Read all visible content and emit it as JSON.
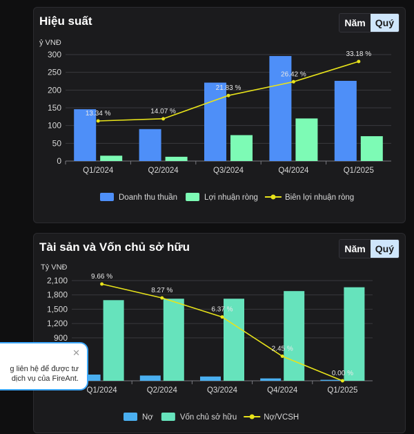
{
  "performance": {
    "title": "Hiệu suất",
    "toggle": {
      "year_label": "Năm",
      "quarter_label": "Quý"
    }
  },
  "assets": {
    "title": "Tài sản và Vốn chủ sở hữu",
    "toggle": {
      "year_label": "Năm",
      "quarter_label": "Quý"
    }
  },
  "popup": {
    "line1": "g liên hệ để được tư",
    "line2": "dịch vụ của FireAnt."
  },
  "chart_data": [
    {
      "type": "bar",
      "ylabel": "ỷ VNĐ",
      "categories": [
        "Q1/2024",
        "Q2/2024",
        "Q3/2024",
        "Q4/2024",
        "Q1/2025"
      ],
      "ylim": [
        0,
        300
      ],
      "yticks": [
        "0",
        "50",
        "100",
        "150",
        "200",
        "250",
        "300"
      ],
      "series": [
        {
          "name": "Doanh thu thuần",
          "type": "bar",
          "color": "#4e8ff8",
          "values": [
            146,
            90,
            221,
            296,
            226
          ]
        },
        {
          "name": "Lợi nhuận ròng",
          "type": "bar",
          "color": "#7dfbb5",
          "values": [
            15,
            12,
            73,
            120,
            70
          ]
        },
        {
          "name": "Biên lợi nhuận ròng",
          "type": "line",
          "color": "#e8e31a",
          "values": [
            13.34,
            14.07,
            21.83,
            26.42,
            33.18
          ],
          "labels": [
            "13.34 %",
            "14.07 %",
            "21.83 %",
            "26.42 %",
            "33.18 %"
          ]
        }
      ],
      "legend_position": "bottom",
      "grid": true
    },
    {
      "type": "bar",
      "ylabel": "Tỷ VNĐ",
      "categories": [
        "Q1/2024",
        "Q2/2024",
        "Q3/2024",
        "Q4/2024",
        "Q1/2025"
      ],
      "ylim": [
        0,
        2100
      ],
      "yticks": [
        "900",
        "1,200",
        "1,500",
        "1,800",
        "2,100"
      ],
      "series": [
        {
          "name": "Nợ",
          "type": "bar",
          "color": "#4aaff0",
          "values": [
            130,
            110,
            90,
            50,
            20
          ]
        },
        {
          "name": "Vốn chủ sở hữu",
          "type": "bar",
          "color": "#66e3bc",
          "values": [
            1690,
            1720,
            1720,
            1880,
            1960
          ]
        },
        {
          "name": "Nợ/VCSH",
          "type": "line",
          "color": "#e8e31a",
          "values": [
            9.66,
            8.27,
            6.37,
            2.45,
            0.0
          ],
          "labels": [
            "9.66 %",
            "8.27 %",
            "6.37 %",
            "2.45 %",
            "0.00 %"
          ]
        }
      ],
      "legend_position": "bottom",
      "grid": true
    }
  ]
}
